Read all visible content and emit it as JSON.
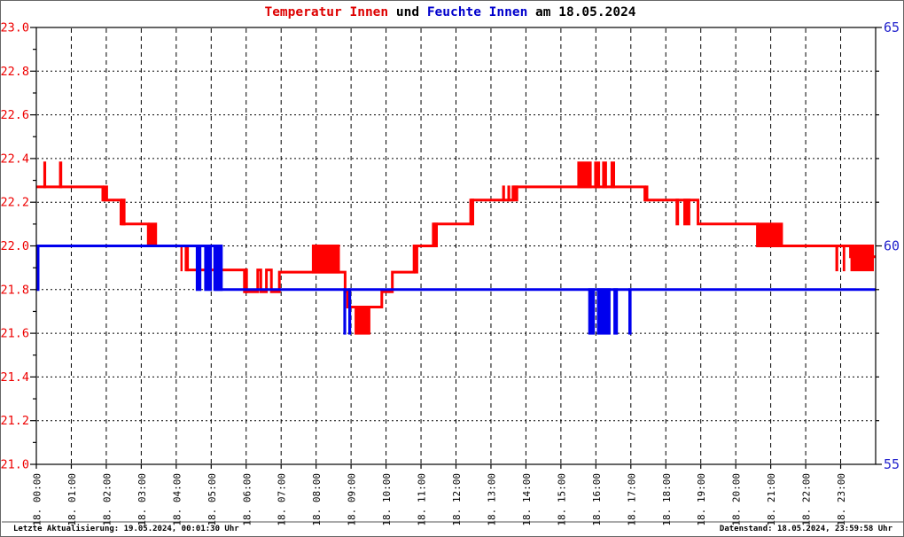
{
  "title": {
    "parts": [
      {
        "text": "Temperatur Innen",
        "color": "#dd0000"
      },
      {
        "text": " und ",
        "color": "#000000"
      },
      {
        "text": "Feuchte Innen",
        "color": "#0000cc"
      },
      {
        "text": " am 18.05.2024",
        "color": "#000000"
      }
    ]
  },
  "footer": {
    "left": "Letzte Aktualisierung: 19.05.2024, 00:01:30 Uhr",
    "right": "Datenstand: 18.05.2024, 23:59:58 Uhr"
  },
  "chart_data": {
    "type": "line",
    "title": "Temperatur Innen und Feuchte Innen am 18.05.2024",
    "grid": true,
    "legend_position": "none",
    "x_axis": {
      "range_hours": [
        0,
        24
      ],
      "gridline_every_hours": 1,
      "tick_labels": [
        "18. 00:00",
        "18. 01:00",
        "18. 02:00",
        "18. 03:00",
        "18. 04:00",
        "18. 05:00",
        "18. 06:00",
        "18. 07:00",
        "18. 08:00",
        "18. 09:00",
        "18. 10:00",
        "18. 11:00",
        "18. 12:00",
        "18. 13:00",
        "18. 14:00",
        "18. 15:00",
        "18. 16:00",
        "18. 17:00",
        "18. 18:00",
        "18. 19:00",
        "18. 20:00",
        "18. 21:00",
        "18. 22:00",
        "18. 23:00"
      ]
    },
    "y_axis_left": {
      "name": "Temperatur Innen",
      "color": "#ee0000",
      "min": 21.0,
      "max": 23.0,
      "major_step": 0.2,
      "minor_step": 0.1,
      "tick_labels": [
        "23.0",
        "22.8",
        "22.6",
        "22.4",
        "22.2",
        "22.0",
        "21.8",
        "21.6",
        "21.4",
        "21.2",
        "21.0"
      ]
    },
    "y_axis_right": {
      "name": "Feuchte Innen",
      "color": "#2222cc",
      "min": 55,
      "max": 65,
      "minor_step": 1,
      "tick_labels": [
        {
          "value": 65,
          "label": "65"
        },
        {
          "value": 60,
          "label": "60"
        },
        {
          "value": 55,
          "label": "55"
        }
      ]
    },
    "series": [
      {
        "name": "Temperatur Innen",
        "axis": "left",
        "color": "#ff0000",
        "segments_format": "[t0,t1,value] flat step | [t0,t1,lo,hi] rapid-toggle band (hours, degC)",
        "segments": [
          [
            0.0,
            0.2,
            22.27
          ],
          [
            0.2,
            0.28,
            22.27,
            22.38
          ],
          [
            0.28,
            0.65,
            22.27
          ],
          [
            0.65,
            0.74,
            22.27,
            22.38
          ],
          [
            0.74,
            1.9,
            22.27
          ],
          [
            1.9,
            2.05,
            22.21,
            22.27
          ],
          [
            2.05,
            2.42,
            22.21
          ],
          [
            2.42,
            2.55,
            22.1,
            22.21
          ],
          [
            2.55,
            3.2,
            22.1
          ],
          [
            3.2,
            3.45,
            22.0,
            22.1
          ],
          [
            3.45,
            4.12,
            22.0
          ],
          [
            4.12,
            4.18,
            21.89,
            22.0
          ],
          [
            4.18,
            4.28,
            22.0
          ],
          [
            4.28,
            4.36,
            21.89,
            22.0
          ],
          [
            4.36,
            5.95,
            21.89
          ],
          [
            5.95,
            6.05,
            21.79,
            21.89
          ],
          [
            6.05,
            6.33,
            21.79
          ],
          [
            6.33,
            6.42,
            21.89
          ],
          [
            6.42,
            6.58,
            21.79
          ],
          [
            6.58,
            6.72,
            21.89
          ],
          [
            6.72,
            6.95,
            21.79
          ],
          [
            6.95,
            7.88,
            21.88
          ],
          [
            7.88,
            8.68,
            21.88,
            22.0
          ],
          [
            8.68,
            8.83,
            21.88
          ],
          [
            8.83,
            8.9,
            21.79
          ],
          [
            8.9,
            9.1,
            21.72
          ],
          [
            9.1,
            9.55,
            21.6,
            21.72
          ],
          [
            9.55,
            9.88,
            21.72
          ],
          [
            9.88,
            10.18,
            21.79
          ],
          [
            10.18,
            10.8,
            21.88
          ],
          [
            10.8,
            10.92,
            21.88,
            22.0
          ],
          [
            10.92,
            11.35,
            22.0
          ],
          [
            11.35,
            11.48,
            22.0,
            22.1
          ],
          [
            11.48,
            12.42,
            22.1
          ],
          [
            12.42,
            12.52,
            22.1,
            22.21
          ],
          [
            12.52,
            13.32,
            22.21
          ],
          [
            13.32,
            13.4,
            22.21,
            22.27
          ],
          [
            13.4,
            13.47,
            22.21
          ],
          [
            13.47,
            13.55,
            22.21,
            22.27
          ],
          [
            13.55,
            13.63,
            22.21
          ],
          [
            13.63,
            13.78,
            22.21,
            22.27
          ],
          [
            13.78,
            15.47,
            22.27
          ],
          [
            15.47,
            15.88,
            22.27,
            22.38
          ],
          [
            15.88,
            15.95,
            22.27
          ],
          [
            15.95,
            16.12,
            22.27,
            22.38
          ],
          [
            16.12,
            16.18,
            22.27
          ],
          [
            16.18,
            16.32,
            22.27,
            22.38
          ],
          [
            16.32,
            16.42,
            22.27
          ],
          [
            16.42,
            16.55,
            22.27,
            22.38
          ],
          [
            16.55,
            17.4,
            22.27
          ],
          [
            17.4,
            17.5,
            22.21,
            22.27
          ],
          [
            17.5,
            18.28,
            22.21
          ],
          [
            18.28,
            18.38,
            22.1,
            22.21
          ],
          [
            18.38,
            18.5,
            22.21
          ],
          [
            18.5,
            18.7,
            22.1,
            22.21
          ],
          [
            18.7,
            18.92,
            22.21
          ],
          [
            18.92,
            20.62,
            22.1
          ],
          [
            20.62,
            21.35,
            22.0,
            22.1
          ],
          [
            21.35,
            22.85,
            22.0
          ],
          [
            22.85,
            22.93,
            21.89,
            22.0
          ],
          [
            22.93,
            23.06,
            22.0
          ],
          [
            23.06,
            23.13,
            21.89,
            22.0
          ],
          [
            23.13,
            23.28,
            22.0
          ],
          [
            23.28,
            23.95,
            21.89,
            22.0
          ],
          [
            23.95,
            24.0,
            21.95
          ]
        ]
      },
      {
        "name": "Feuchte Innen",
        "axis": "right",
        "color": "#0000ee",
        "segments_format": "[t0,t1,value] flat step | [t0,t1,lo,hi] rapid-toggle band (hours, %rH)",
        "segments": [
          [
            0.0,
            0.05,
            59
          ],
          [
            0.05,
            4.56,
            60
          ],
          [
            4.56,
            4.72,
            59,
            60
          ],
          [
            4.72,
            4.8,
            60
          ],
          [
            4.8,
            5.02,
            59,
            60
          ],
          [
            5.02,
            5.1,
            60
          ],
          [
            5.1,
            5.33,
            59,
            60
          ],
          [
            5.33,
            8.78,
            59
          ],
          [
            8.78,
            8.86,
            58,
            59
          ],
          [
            8.86,
            8.92,
            59
          ],
          [
            8.92,
            9.0,
            58,
            59
          ],
          [
            9.0,
            15.78,
            59
          ],
          [
            15.78,
            15.97,
            58,
            59
          ],
          [
            15.97,
            16.03,
            59
          ],
          [
            16.03,
            16.42,
            58,
            59
          ],
          [
            16.42,
            16.5,
            59
          ],
          [
            16.5,
            16.63,
            58,
            59
          ],
          [
            16.63,
            16.93,
            59
          ],
          [
            16.93,
            17.02,
            58,
            59
          ],
          [
            17.02,
            24.0,
            59
          ]
        ]
      }
    ]
  },
  "colors": {
    "background": "#ffffff",
    "plot_border": "#000000",
    "gridline": "#000000",
    "x_label": "#000000",
    "footer_separator": "#555555",
    "temperature_line": "#ff0000",
    "humidity_line": "#0000ee"
  }
}
